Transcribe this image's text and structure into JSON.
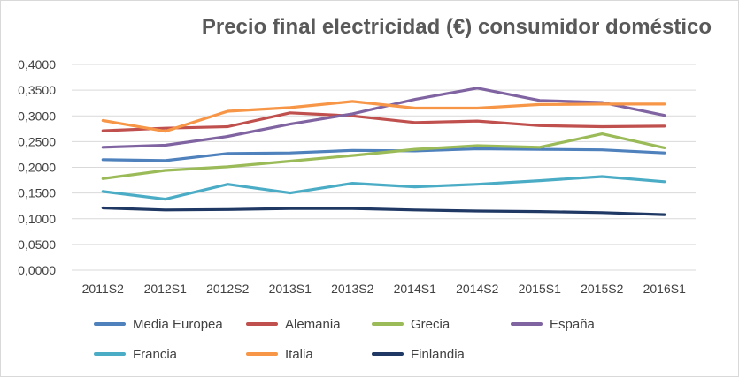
{
  "chart_data": {
    "type": "line",
    "title": "Precio final electricidad (€) consumidor doméstico",
    "categories": [
      "2011S2",
      "2012S1",
      "2012S2",
      "2013S1",
      "2013S2",
      "2014S1",
      "2014S2",
      "2015S1",
      "2015S2",
      "2016S1"
    ],
    "ylim": [
      0,
      0.4
    ],
    "yticks": [
      "0,0000",
      "0,0500",
      "0,1000",
      "0,1500",
      "0,2000",
      "0,2500",
      "0,3000",
      "0,3500",
      "0,4000"
    ],
    "grid": true,
    "legend_position": "bottom",
    "series": [
      {
        "name": "Media Europea",
        "color": "#4f81bd",
        "values": [
          0.215,
          0.213,
          0.227,
          0.228,
          0.233,
          0.232,
          0.236,
          0.235,
          0.234,
          0.228
        ]
      },
      {
        "name": "Alemania",
        "color": "#c0504d",
        "values": [
          0.271,
          0.276,
          0.279,
          0.306,
          0.3,
          0.287,
          0.29,
          0.281,
          0.279,
          0.28
        ]
      },
      {
        "name": "Grecia",
        "color": "#9bbb59",
        "values": [
          0.178,
          0.194,
          0.201,
          0.212,
          0.223,
          0.235,
          0.242,
          0.239,
          0.265,
          0.238
        ]
      },
      {
        "name": "España",
        "color": "#8064a2",
        "values": [
          0.239,
          0.243,
          0.26,
          0.284,
          0.304,
          0.332,
          0.354,
          0.33,
          0.326,
          0.301
        ]
      },
      {
        "name": "Francia",
        "color": "#4bacc6",
        "values": [
          0.153,
          0.138,
          0.167,
          0.15,
          0.169,
          0.162,
          0.167,
          0.174,
          0.182,
          0.172
        ]
      },
      {
        "name": "Italia",
        "color": "#f79646",
        "values": [
          0.291,
          0.27,
          0.309,
          0.316,
          0.328,
          0.315,
          0.315,
          0.322,
          0.323,
          0.323
        ]
      },
      {
        "name": "Finlandia",
        "color": "#1f3864",
        "values": [
          0.121,
          0.117,
          0.118,
          0.12,
          0.12,
          0.117,
          0.115,
          0.114,
          0.112,
          0.108
        ]
      }
    ]
  }
}
